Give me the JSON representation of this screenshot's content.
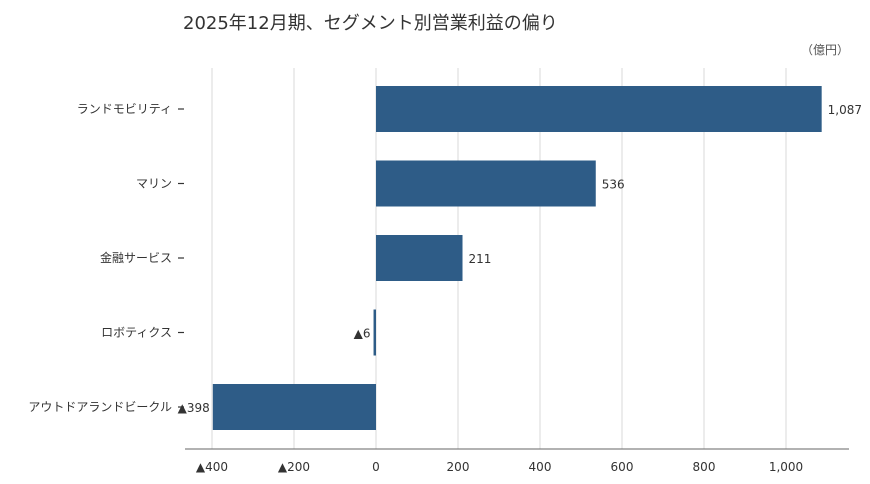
{
  "chart_data": {
    "type": "bar",
    "orientation": "horizontal",
    "title": "2025年12月期、セグメント別営業利益の偏り",
    "unit_label": "（億円）",
    "categories": [
      "ランドモビリティ",
      "マリン",
      "金融サービス",
      "ロボティクス",
      "アウトドアランドビークル"
    ],
    "values": [
      1087,
      536,
      211,
      -6,
      -398
    ],
    "value_labels": [
      "1,087",
      "536",
      "211",
      "▲6",
      "▲398"
    ],
    "xlim": [
      -400,
      1000
    ],
    "x_ticks": [
      -400,
      -200,
      0,
      200,
      400,
      600,
      800,
      1000
    ],
    "x_tick_labels": [
      "▲400",
      "▲200",
      "0",
      "200",
      "400",
      "600",
      "800",
      "1,000"
    ],
    "grid": true,
    "bar_color": "#2e5c87"
  }
}
